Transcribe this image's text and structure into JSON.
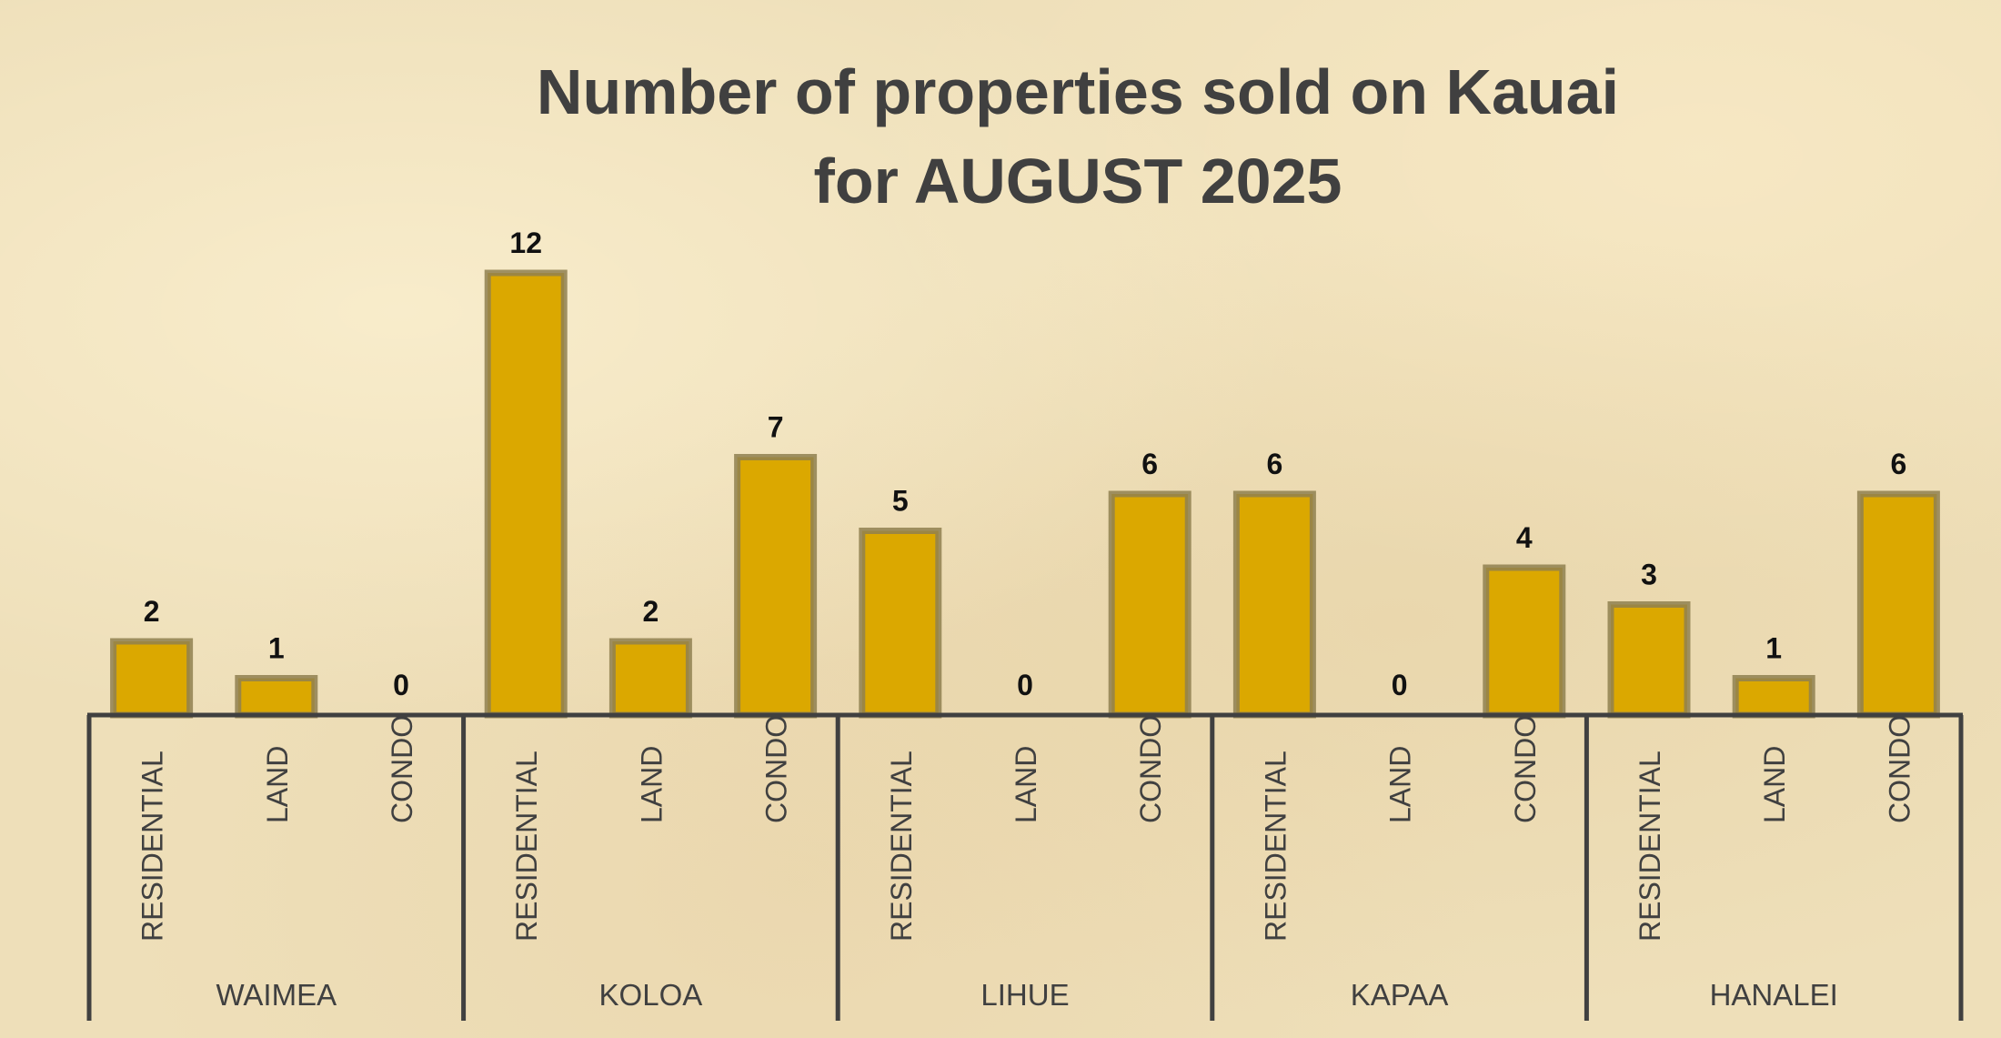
{
  "chart_data": {
    "type": "bar",
    "title": [
      "Number of properties sold on Kauai",
      "for  AUGUST 2025"
    ],
    "groups": [
      "WAIMEA",
      "KOLOA",
      "LIHUE",
      "KAPAA",
      "HANALEI"
    ],
    "categories": [
      "RESIDENTIAL",
      "LAND",
      "CONDO"
    ],
    "values": [
      [
        2,
        1,
        0
      ],
      [
        12,
        2,
        7
      ],
      [
        5,
        0,
        6
      ],
      [
        6,
        0,
        4
      ],
      [
        3,
        1,
        6
      ]
    ],
    "data_labels": true,
    "ylim": [
      0,
      12
    ],
    "grid": false,
    "legend": "none",
    "colors": {
      "bar": "#dba800",
      "bar_border": "#8f8050",
      "axis": "#404040",
      "text": "#404040",
      "label": "#111111"
    }
  }
}
